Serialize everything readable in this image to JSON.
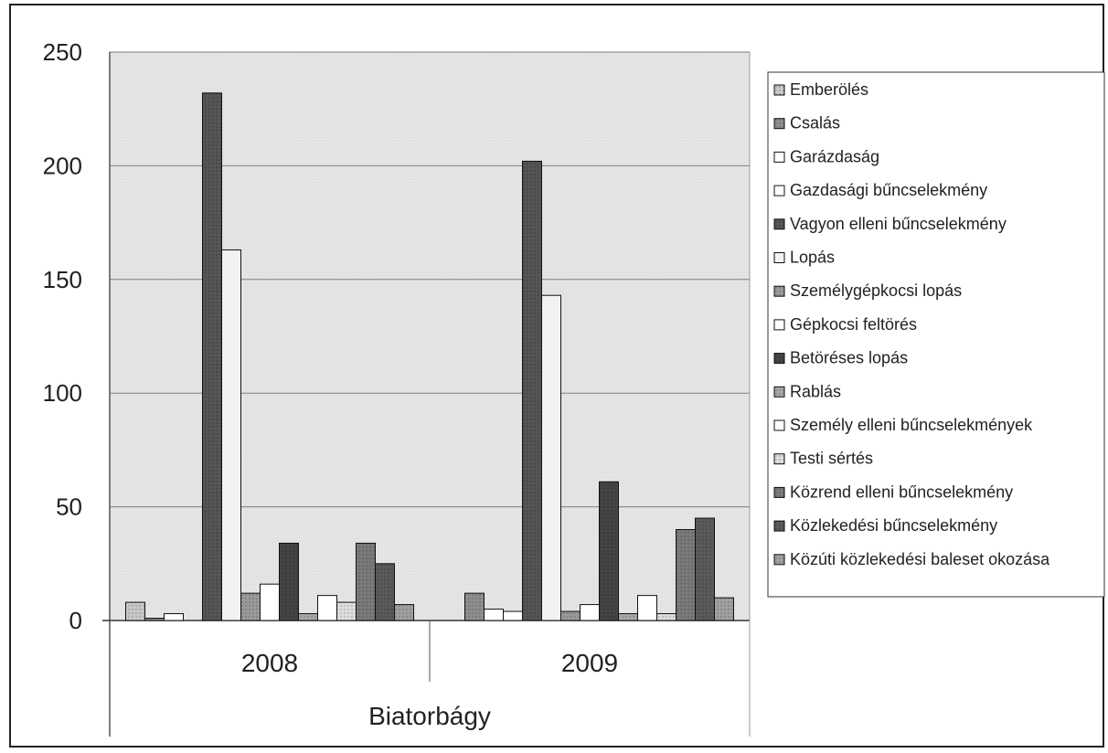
{
  "chart_data": {
    "type": "bar",
    "xlabel": "Biatorbágy",
    "categories": [
      "2008",
      "2009"
    ],
    "ylim": [
      0,
      250
    ],
    "yticks": [
      0,
      50,
      100,
      150,
      200,
      250
    ],
    "grid": true,
    "legend_position": "right",
    "series": [
      {
        "name": "Emberölés",
        "values": [
          8,
          0
        ],
        "color": "#c8c8c8",
        "pattern": "dots"
      },
      {
        "name": "Csalás",
        "values": [
          1,
          12
        ],
        "color": "#8e8e8e",
        "pattern": "dots"
      },
      {
        "name": "Garázdaság",
        "values": [
          3,
          5
        ],
        "color": "#ffffff",
        "pattern": "none"
      },
      {
        "name": "Gazdasági bűncselekmény",
        "values": [
          0,
          4
        ],
        "color": "#ffffff",
        "pattern": "none"
      },
      {
        "name": "Vagyon elleni bűncselekmény",
        "values": [
          232,
          202
        ],
        "color": "#555555",
        "pattern": "dots"
      },
      {
        "name": "Lopás",
        "values": [
          163,
          143
        ],
        "color": "#f2f2f2",
        "pattern": "none"
      },
      {
        "name": "Személygépkocsi lopás",
        "values": [
          12,
          4
        ],
        "color": "#9a9a9a",
        "pattern": "dots"
      },
      {
        "name": "Gépkocsi feltörés",
        "values": [
          16,
          7
        ],
        "color": "#ffffff",
        "pattern": "none"
      },
      {
        "name": "Betöréses lopás",
        "values": [
          34,
          61
        ],
        "color": "#444444",
        "pattern": "dots"
      },
      {
        "name": "Rablás",
        "values": [
          3,
          3
        ],
        "color": "#a8a8a8",
        "pattern": "dots"
      },
      {
        "name": "Személy elleni bűncselekmények",
        "values": [
          11,
          11
        ],
        "color": "#ffffff",
        "pattern": "none"
      },
      {
        "name": "Testi sértés",
        "values": [
          8,
          3
        ],
        "color": "#dedede",
        "pattern": "dots"
      },
      {
        "name": "Közrend elleni bűncselekmény",
        "values": [
          34,
          40
        ],
        "color": "#7a7a7a",
        "pattern": "dots"
      },
      {
        "name": "Közlekedési bűncselekmény",
        "values": [
          25,
          45
        ],
        "color": "#5a5a5a",
        "pattern": "dots"
      },
      {
        "name": "Közúti közlekedési baleset okozása",
        "values": [
          7,
          10
        ],
        "color": "#a0a0a0",
        "pattern": "dots"
      }
    ]
  }
}
